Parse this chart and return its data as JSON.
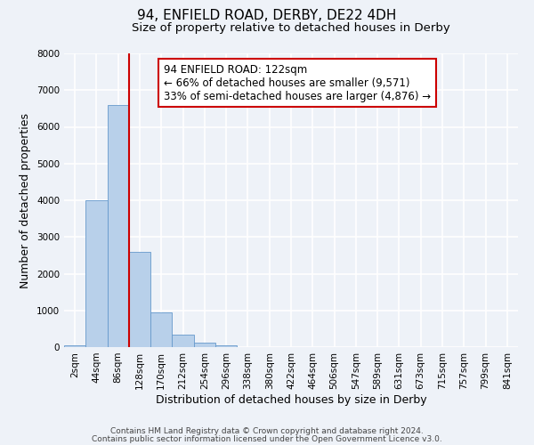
{
  "title": "94, ENFIELD ROAD, DERBY, DE22 4DH",
  "subtitle": "Size of property relative to detached houses in Derby",
  "xlabel": "Distribution of detached houses by size in Derby",
  "ylabel": "Number of detached properties",
  "bin_labels": [
    "2sqm",
    "44sqm",
    "86sqm",
    "128sqm",
    "170sqm",
    "212sqm",
    "254sqm",
    "296sqm",
    "338sqm",
    "380sqm",
    "422sqm",
    "464sqm",
    "506sqm",
    "547sqm",
    "589sqm",
    "631sqm",
    "673sqm",
    "715sqm",
    "757sqm",
    "799sqm",
    "841sqm"
  ],
  "bar_values": [
    50,
    4000,
    6600,
    2600,
    950,
    330,
    120,
    50,
    0,
    0,
    0,
    0,
    0,
    0,
    0,
    0,
    0,
    0,
    0,
    0,
    0
  ],
  "bar_color": "#b8d0ea",
  "bar_edge_color": "#6699cc",
  "vline_x_index": 3,
  "vline_color": "#cc0000",
  "annotation_text": "94 ENFIELD ROAD: 122sqm\n← 66% of detached houses are smaller (9,571)\n33% of semi-detached houses are larger (4,876) →",
  "annotation_box_color": "#ffffff",
  "annotation_box_edge_color": "#cc0000",
  "ylim": [
    0,
    8000
  ],
  "yticks": [
    0,
    1000,
    2000,
    3000,
    4000,
    5000,
    6000,
    7000,
    8000
  ],
  "footer_line1": "Contains HM Land Registry data © Crown copyright and database right 2024.",
  "footer_line2": "Contains public sector information licensed under the Open Government Licence v3.0.",
  "background_color": "#eef2f8",
  "grid_color": "#ffffff",
  "title_fontsize": 11,
  "subtitle_fontsize": 9.5,
  "axis_label_fontsize": 9,
  "tick_fontsize": 7.5,
  "annotation_fontsize": 8.5,
  "footer_fontsize": 6.5
}
